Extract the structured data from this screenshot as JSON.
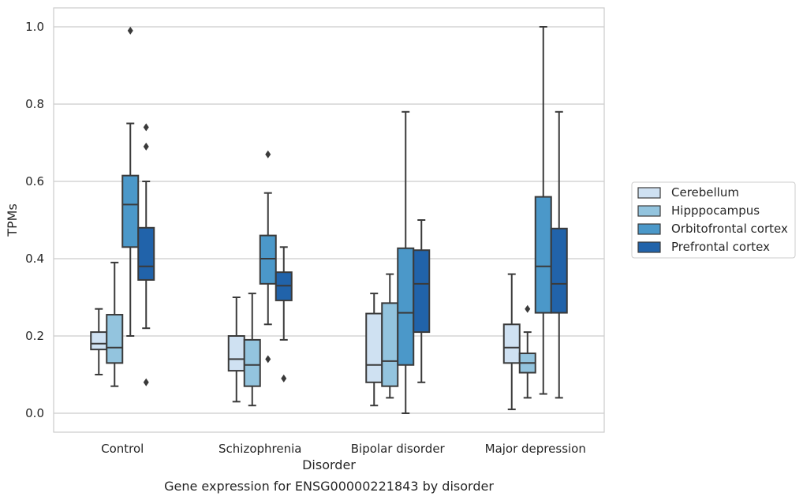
{
  "chart_data": {
    "type": "box",
    "title": "",
    "caption": "Gene expression for ENSG00000221843 by disorder",
    "xlabel": "Disorder",
    "ylabel": "TPMs",
    "ylim": [
      -0.05,
      1.05
    ],
    "yticks": [
      0.0,
      0.2,
      0.4,
      0.6,
      0.8,
      1.0
    ],
    "ytick_labels": [
      "0.0",
      "0.2",
      "0.4",
      "0.6",
      "0.8",
      "1.0"
    ],
    "grid": true,
    "legend_position": "right",
    "categories": [
      "Control",
      "Schizophrenia",
      "Bipolar disorder",
      "Major depression"
    ],
    "series": [
      {
        "name": "Cerebellum",
        "color": "#cfe1f2",
        "boxes": [
          {
            "whislo": 0.1,
            "q1": 0.165,
            "med": 0.18,
            "q3": 0.21,
            "whishi": 0.27,
            "fliers": []
          },
          {
            "whislo": 0.03,
            "q1": 0.11,
            "med": 0.14,
            "q3": 0.2,
            "whishi": 0.3,
            "fliers": []
          },
          {
            "whislo": 0.02,
            "q1": 0.08,
            "med": 0.125,
            "q3": 0.258,
            "whishi": 0.31,
            "fliers": []
          },
          {
            "whislo": 0.01,
            "q1": 0.13,
            "med": 0.17,
            "q3": 0.23,
            "whishi": 0.36,
            "fliers": []
          }
        ]
      },
      {
        "name": "Hipppocampus",
        "color": "#93c4de",
        "boxes": [
          {
            "whislo": 0.07,
            "q1": 0.13,
            "med": 0.17,
            "q3": 0.255,
            "whishi": 0.39,
            "fliers": []
          },
          {
            "whislo": 0.02,
            "q1": 0.07,
            "med": 0.125,
            "q3": 0.19,
            "whishi": 0.31,
            "fliers": []
          },
          {
            "whislo": 0.04,
            "q1": 0.07,
            "med": 0.135,
            "q3": 0.285,
            "whishi": 0.36,
            "fliers": []
          },
          {
            "whislo": 0.04,
            "q1": 0.105,
            "med": 0.13,
            "q3": 0.155,
            "whishi": 0.21,
            "fliers": [
              0.27
            ]
          }
        ]
      },
      {
        "name": "Orbitofrontal cortex",
        "color": "#4b98c9",
        "boxes": [
          {
            "whislo": 0.2,
            "q1": 0.43,
            "med": 0.54,
            "q3": 0.615,
            "whishi": 0.75,
            "fliers": [
              0.99
            ]
          },
          {
            "whislo": 0.23,
            "q1": 0.335,
            "med": 0.4,
            "q3": 0.46,
            "whishi": 0.57,
            "fliers": [
              0.67,
              0.14
            ]
          },
          {
            "whislo": 0.0,
            "q1": 0.125,
            "med": 0.26,
            "q3": 0.427,
            "whishi": 0.78,
            "fliers": []
          },
          {
            "whislo": 0.05,
            "q1": 0.26,
            "med": 0.38,
            "q3": 0.56,
            "whishi": 1.0,
            "fliers": []
          }
        ]
      },
      {
        "name": "Prefrontal cortex",
        "color": "#2163aa",
        "boxes": [
          {
            "whislo": 0.22,
            "q1": 0.345,
            "med": 0.38,
            "q3": 0.48,
            "whishi": 0.6,
            "fliers": [
              0.74,
              0.69,
              0.08
            ]
          },
          {
            "whislo": 0.19,
            "q1": 0.292,
            "med": 0.33,
            "q3": 0.365,
            "whishi": 0.43,
            "fliers": [
              0.09
            ]
          },
          {
            "whislo": 0.08,
            "q1": 0.21,
            "med": 0.335,
            "q3": 0.422,
            "whishi": 0.5,
            "fliers": []
          },
          {
            "whislo": 0.04,
            "q1": 0.26,
            "med": 0.335,
            "q3": 0.478,
            "whishi": 0.78,
            "fliers": []
          }
        ]
      }
    ]
  }
}
